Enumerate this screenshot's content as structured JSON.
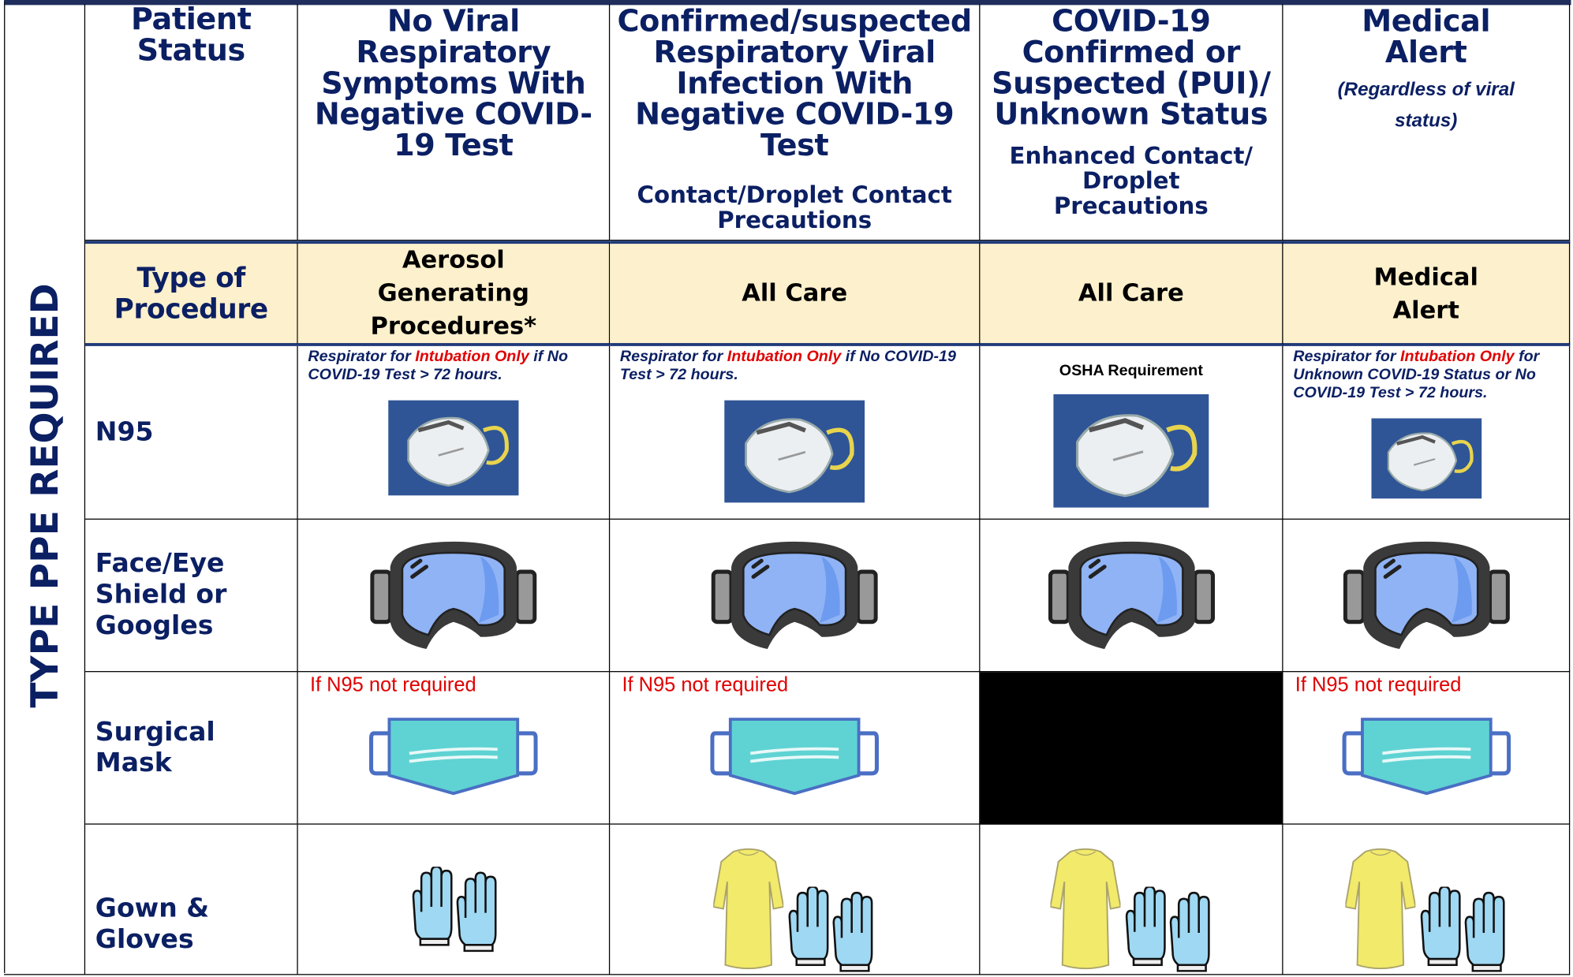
{
  "side_label": "TYPE PPE REQUIRED",
  "header_row": {
    "label": "Patient Status",
    "columns": [
      {
        "title": "No Viral Respiratory Symptoms With Negative COVID-19 Test"
      },
      {
        "title": "Confirmed/suspected Respiratory Viral Infection With Negative COVID-19 Test",
        "precautions": "Contact/Droplet Contact Precautions"
      },
      {
        "title": "COVID-19 Confirmed or Suspected (PUI)/ Unknown Status",
        "precautions": "Enhanced Contact/ Droplet Precautions"
      },
      {
        "title": "Medical Alert",
        "note": "(Regardless of viral status)"
      }
    ]
  },
  "procedure_row": {
    "label": "Type of Procedure",
    "cells": [
      "Aerosol Generating Procedures*",
      "All Care",
      "All Care",
      "Medical Alert"
    ]
  },
  "rows": [
    {
      "label": "N95",
      "notes": [
        [
          "Respirator for ",
          "Intubation Only",
          " if No COVID-19 Test > 72 hours."
        ],
        [
          "Respirator for ",
          "Intubation Only",
          " if No COVID-19 Test > 72 hours."
        ],
        [
          "OSHA Requirement"
        ],
        [
          "Respirator for ",
          "Intubation Only",
          " for Unknown COVID-19 Status or No COVID-19 Test > 72 hours."
        ]
      ]
    },
    {
      "label": "Face/Eye Shield or Googles"
    },
    {
      "label": "Surgical Mask",
      "notes": [
        [
          "If N95 not required"
        ],
        [
          "If N95 not required"
        ],
        [],
        [
          "If N95 not required"
        ]
      ]
    },
    {
      "label": "Gown & Gloves"
    }
  ]
}
